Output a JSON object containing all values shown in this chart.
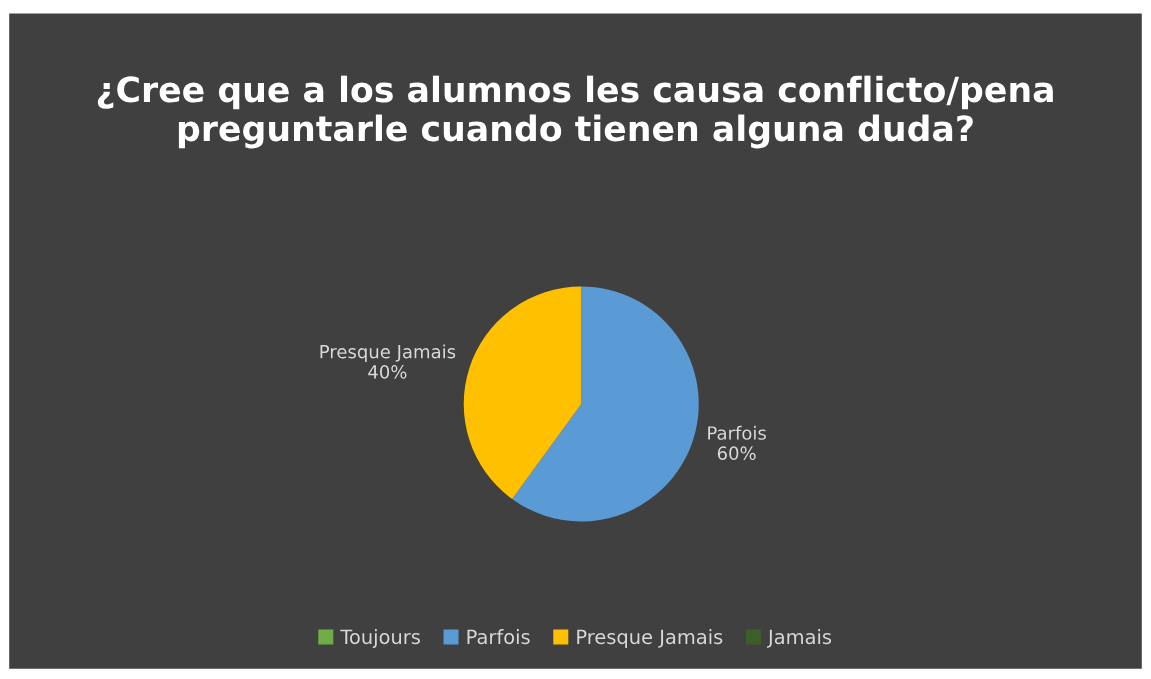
{
  "chart_data": {
    "type": "pie",
    "title": "¿Cree que a los alumnos les causa conflicto/pena preguntarle cuando tienen alguna duda?",
    "categories": [
      "Toujours",
      "Parfois",
      "Presque Jamais",
      "Jamais"
    ],
    "values": [
      0,
      60,
      40,
      0
    ],
    "colors": [
      "#70ad47",
      "#5b9bd5",
      "#ffc000",
      "#3d5e28"
    ],
    "value_labels": [
      null,
      "Parfois\n60%",
      "Presque Jamais\n40%",
      null
    ],
    "legend": "bottom"
  }
}
